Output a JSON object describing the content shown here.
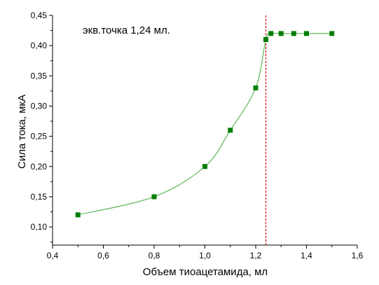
{
  "chart_data": {
    "type": "scatter",
    "title": "",
    "xlabel": "Объем тиоацетамида, мл",
    "ylabel": "Сила тока, мкА",
    "xlim": [
      0.4,
      1.6
    ],
    "ylim": [
      0.07,
      0.45
    ],
    "x_ticks": [
      0.4,
      0.6,
      0.8,
      1.0,
      1.2,
      1.4,
      1.6
    ],
    "x_tick_labels": [
      "0,4",
      "0,6",
      "0,8",
      "1,0",
      "1,2",
      "1,4",
      "1,6"
    ],
    "y_ticks": [
      0.1,
      0.15,
      0.2,
      0.25,
      0.3,
      0.35,
      0.4,
      0.45
    ],
    "y_tick_labels": [
      "0,10",
      "0,15",
      "0,20",
      "0,25",
      "0,30",
      "0,35",
      "0,40",
      "0,45"
    ],
    "grid": false,
    "legend": "none",
    "series": [
      {
        "x": [
          0.5,
          0.8,
          1.0,
          1.1,
          1.2,
          1.24,
          1.26,
          1.3,
          1.35,
          1.4,
          1.5
        ],
        "y": [
          0.12,
          0.15,
          0.2,
          0.26,
          0.33,
          0.41,
          0.42,
          0.42,
          0.42,
          0.42,
          0.42
        ],
        "marker": "square",
        "marker_color": "#007f00",
        "line": "smooth",
        "line_color": "#5cb85c"
      }
    ],
    "reference_line": {
      "orientation": "vertical",
      "x": 1.24,
      "style": "dashed",
      "color": "#e00000"
    },
    "annotation": {
      "text": "экв.точка 1,24 мл.",
      "position": "top-left"
    }
  }
}
